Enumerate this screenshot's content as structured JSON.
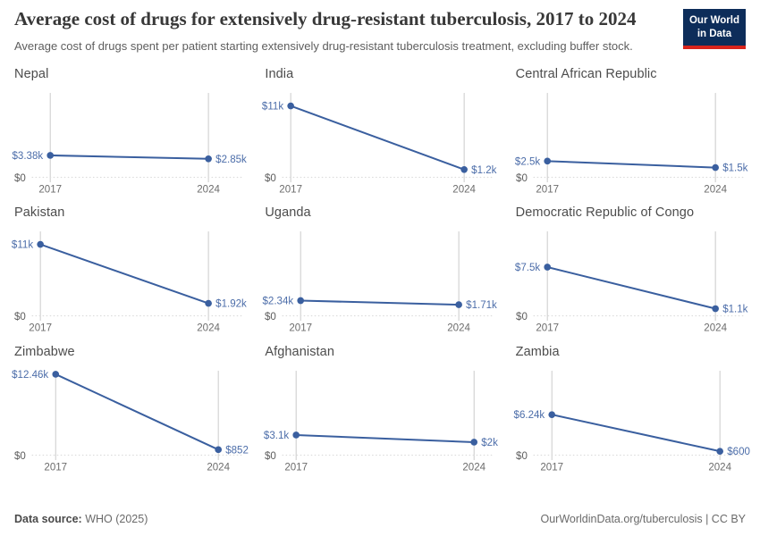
{
  "header": {
    "title": "Average cost of drugs for extensively drug-resistant tuberculosis, 2017 to 2024",
    "subtitle": "Average cost of drugs spent per patient starting extensively drug-resistant tuberculosis treatment, excluding buffer stock.",
    "logo": {
      "line1": "Our World",
      "line2": "in Data",
      "bg_color": "#0D2D5A",
      "accent_color": "#D8241C"
    }
  },
  "chart_data": {
    "type": "line",
    "x": [
      2017,
      2024
    ],
    "x_tick_labels": [
      "2017",
      "2024"
    ],
    "y_axis": {
      "min": 0,
      "max": 13000,
      "zero_label": "$0",
      "unit": "US$"
    },
    "grid": "zero-line-only",
    "legend": "none",
    "colors": {
      "series": "#3A5F9F",
      "value_label": "#4C6DA9",
      "gridline": "#CBCBCB",
      "zero_line": "#DCDCDC",
      "zero_label": "#5D5D5D",
      "year_label": "#6C6C6C"
    },
    "facets": [
      {
        "title": "Nepal",
        "values": [
          3380,
          2850
        ],
        "labels": [
          "$3.38k",
          "$2.85k"
        ]
      },
      {
        "title": "India",
        "values": [
          11000,
          1200
        ],
        "labels": [
          "$11k",
          "$1.2k"
        ]
      },
      {
        "title": "Central African Republic",
        "values": [
          2500,
          1500
        ],
        "labels": [
          "$2.5k",
          "$1.5k"
        ]
      },
      {
        "title": "Pakistan",
        "values": [
          11000,
          1920
        ],
        "labels": [
          "$11k",
          "$1.92k"
        ]
      },
      {
        "title": "Uganda",
        "values": [
          2340,
          1710
        ],
        "labels": [
          "$2.34k",
          "$1.71k"
        ]
      },
      {
        "title": "Democratic Republic of Congo",
        "values": [
          7500,
          1100
        ],
        "labels": [
          "$7.5k",
          "$1.1k"
        ]
      },
      {
        "title": "Zimbabwe",
        "values": [
          12460,
          852
        ],
        "labels": [
          "$12.46k",
          "$852"
        ]
      },
      {
        "title": "Afghanistan",
        "values": [
          3100,
          2000
        ],
        "labels": [
          "$3.1k",
          "$2k"
        ]
      },
      {
        "title": "Zambia",
        "values": [
          6240,
          600
        ],
        "labels": [
          "$6.24k",
          "$600"
        ]
      }
    ]
  },
  "footer": {
    "source_label": "Data source:",
    "source_value": " WHO (2025)",
    "link": "OurWorldinData.org/tuberculosis | CC BY"
  }
}
